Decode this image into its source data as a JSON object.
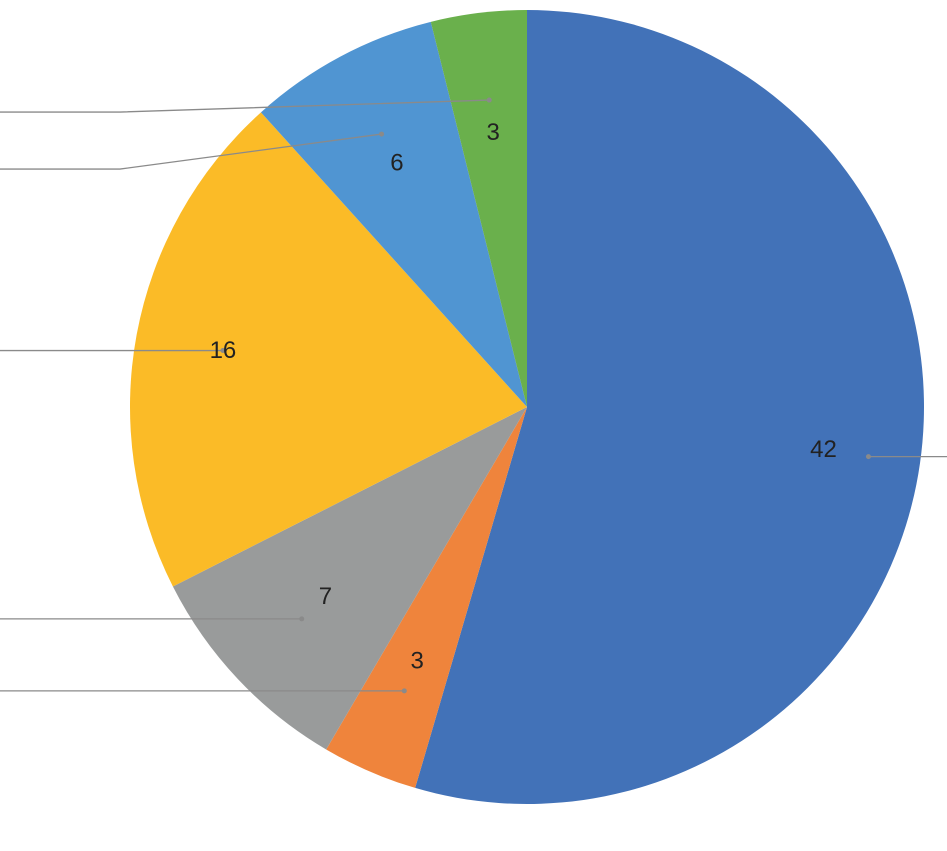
{
  "chart_data": {
    "type": "pie",
    "title": "",
    "start_angle_deg": 0,
    "direction": "clockwise",
    "slices": [
      {
        "value": 42,
        "label": "42",
        "color": "#4272b8"
      },
      {
        "value": 3,
        "label": "3",
        "color": "#ef843c"
      },
      {
        "value": 7,
        "label": "7",
        "color": "#999b9b"
      },
      {
        "value": 16,
        "label": "16",
        "color": "#fbbb27"
      },
      {
        "value": 6,
        "label": "6",
        "color": "#5095d2"
      },
      {
        "value": 3,
        "label": "3",
        "color": "#6ab04c"
      }
    ],
    "leader_line_color": "#8a8a8a"
  }
}
